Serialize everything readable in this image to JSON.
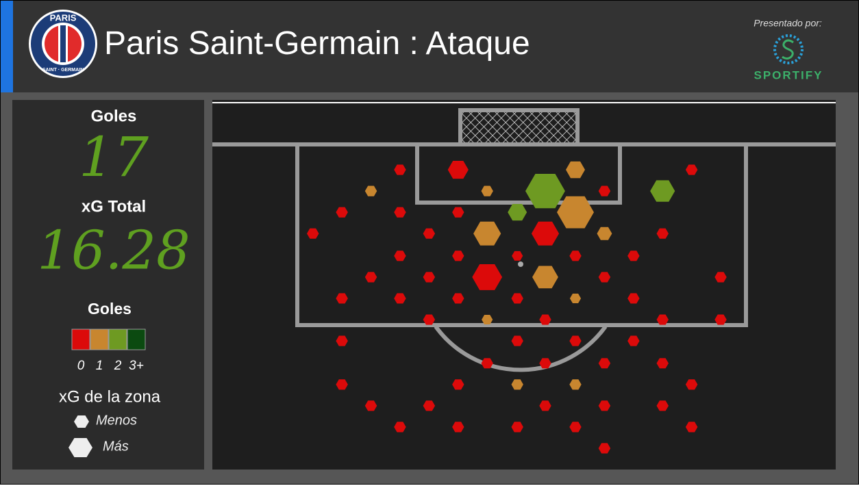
{
  "header": {
    "logo_top": "PARIS",
    "logo_bottom": "SAINT · GERMAIN",
    "title": "Paris Saint-Germain",
    "subtitle": ": Ataque",
    "sponsor_label": "Presentado por:",
    "sponsor": "SPORTIFY"
  },
  "stats": {
    "goals_label": "Goles",
    "goals": 17,
    "xg_label": "xG Total",
    "xg": 16.28
  },
  "legend": {
    "color_title": "Goles",
    "size_title": "xG de la zona",
    "size_small": "Menos",
    "size_large": "Más"
  },
  "chart_data": {
    "type": "hexbin",
    "xlim": [
      -27.6,
      28.2
    ],
    "ylim": [
      -3.7,
      29.1
    ],
    "color_scale": [
      {
        "label": "0",
        "color": "#dc0a0a"
      },
      {
        "label": "1",
        "color": "#c8862f"
      },
      {
        "label": "2",
        "color": "#6e9a22"
      },
      {
        "label": "3+",
        "color": "#0b4a10"
      }
    ],
    "hexes": [
      {
        "x": -10.8,
        "y": 2.3,
        "goals": 0,
        "xg": 0.07
      },
      {
        "x": -5.6,
        "y": 2.3,
        "goals": 0,
        "xg": 0.21
      },
      {
        "x": 4.9,
        "y": 2.3,
        "goals": 1,
        "xg": 0.18
      },
      {
        "x": 15.3,
        "y": 2.3,
        "goals": 0,
        "xg": 0.07
      },
      {
        "x": -13.4,
        "y": 4.2,
        "goals": 1,
        "xg": 0.07
      },
      {
        "x": -3.0,
        "y": 4.2,
        "goals": 1,
        "xg": 0.07
      },
      {
        "x": 2.2,
        "y": 4.2,
        "goals": 2,
        "xg": 0.77
      },
      {
        "x": 7.5,
        "y": 4.2,
        "goals": 0,
        "xg": 0.07
      },
      {
        "x": 12.7,
        "y": 4.2,
        "goals": 2,
        "xg": 0.3
      },
      {
        "x": -16.0,
        "y": 6.1,
        "goals": 0,
        "xg": 0.07
      },
      {
        "x": -10.8,
        "y": 6.1,
        "goals": 0,
        "xg": 0.07
      },
      {
        "x": -5.6,
        "y": 6.1,
        "goals": 0,
        "xg": 0.07
      },
      {
        "x": -0.3,
        "y": 6.1,
        "goals": 2,
        "xg": 0.18
      },
      {
        "x": 4.9,
        "y": 6.1,
        "goals": 1,
        "xg": 0.67
      },
      {
        "x": -18.6,
        "y": 8.0,
        "goals": 0,
        "xg": 0.07
      },
      {
        "x": -8.2,
        "y": 8.0,
        "goals": 0,
        "xg": 0.07
      },
      {
        "x": -3.0,
        "y": 8.0,
        "goals": 1,
        "xg": 0.37
      },
      {
        "x": 2.2,
        "y": 8.0,
        "goals": 0,
        "xg": 0.37
      },
      {
        "x": 7.5,
        "y": 8.0,
        "goals": 1,
        "xg": 0.11
      },
      {
        "x": 12.7,
        "y": 8.0,
        "goals": 0,
        "xg": 0.07
      },
      {
        "x": -10.8,
        "y": 10.0,
        "goals": 0,
        "xg": 0.07
      },
      {
        "x": -5.6,
        "y": 10.0,
        "goals": 0,
        "xg": 0.07
      },
      {
        "x": -0.3,
        "y": 10.0,
        "goals": 0,
        "xg": 0.06
      },
      {
        "x": 4.9,
        "y": 10.0,
        "goals": 0,
        "xg": 0.07
      },
      {
        "x": 10.1,
        "y": 10.0,
        "goals": 0,
        "xg": 0.07
      },
      {
        "x": -13.4,
        "y": 11.9,
        "goals": 0,
        "xg": 0.07
      },
      {
        "x": -8.2,
        "y": 11.9,
        "goals": 0,
        "xg": 0.07
      },
      {
        "x": -3.0,
        "y": 11.9,
        "goals": 0,
        "xg": 0.44
      },
      {
        "x": 2.2,
        "y": 11.9,
        "goals": 1,
        "xg": 0.33
      },
      {
        "x": 7.5,
        "y": 11.9,
        "goals": 0,
        "xg": 0.07
      },
      {
        "x": 17.9,
        "y": 11.9,
        "goals": 0,
        "xg": 0.07
      },
      {
        "x": -16.0,
        "y": 13.8,
        "goals": 0,
        "xg": 0.07
      },
      {
        "x": -10.8,
        "y": 13.8,
        "goals": 0,
        "xg": 0.07
      },
      {
        "x": -5.6,
        "y": 13.8,
        "goals": 0,
        "xg": 0.07
      },
      {
        "x": -0.3,
        "y": 13.8,
        "goals": 0,
        "xg": 0.07
      },
      {
        "x": 4.9,
        "y": 13.8,
        "goals": 1,
        "xg": 0.06
      },
      {
        "x": 10.1,
        "y": 13.8,
        "goals": 0,
        "xg": 0.07
      },
      {
        "x": -8.2,
        "y": 15.7,
        "goals": 0,
        "xg": 0.07
      },
      {
        "x": -3.0,
        "y": 15.7,
        "goals": 1,
        "xg": 0.06
      },
      {
        "x": 2.2,
        "y": 15.7,
        "goals": 0,
        "xg": 0.07
      },
      {
        "x": 12.7,
        "y": 15.7,
        "goals": 0,
        "xg": 0.07
      },
      {
        "x": 17.9,
        "y": 15.7,
        "goals": 0,
        "xg": 0.07
      },
      {
        "x": -16.0,
        "y": 17.6,
        "goals": 0,
        "xg": 0.07
      },
      {
        "x": -0.3,
        "y": 17.6,
        "goals": 0,
        "xg": 0.07
      },
      {
        "x": 4.9,
        "y": 17.6,
        "goals": 0,
        "xg": 0.07
      },
      {
        "x": 10.1,
        "y": 17.6,
        "goals": 0,
        "xg": 0.07
      },
      {
        "x": -3.0,
        "y": 19.6,
        "goals": 0,
        "xg": 0.07
      },
      {
        "x": 2.2,
        "y": 19.6,
        "goals": 0,
        "xg": 0.07
      },
      {
        "x": 7.5,
        "y": 19.6,
        "goals": 0,
        "xg": 0.07
      },
      {
        "x": 12.7,
        "y": 19.6,
        "goals": 0,
        "xg": 0.07
      },
      {
        "x": -16.0,
        "y": 21.5,
        "goals": 0,
        "xg": 0.07
      },
      {
        "x": -5.6,
        "y": 21.5,
        "goals": 0,
        "xg": 0.07
      },
      {
        "x": -0.3,
        "y": 21.5,
        "goals": 1,
        "xg": 0.07
      },
      {
        "x": 4.9,
        "y": 21.5,
        "goals": 1,
        "xg": 0.07
      },
      {
        "x": 15.3,
        "y": 21.5,
        "goals": 0,
        "xg": 0.07
      },
      {
        "x": -13.4,
        "y": 23.4,
        "goals": 0,
        "xg": 0.07
      },
      {
        "x": -8.2,
        "y": 23.4,
        "goals": 0,
        "xg": 0.07
      },
      {
        "x": 2.2,
        "y": 23.4,
        "goals": 0,
        "xg": 0.07
      },
      {
        "x": 7.5,
        "y": 23.4,
        "goals": 0,
        "xg": 0.07
      },
      {
        "x": 12.7,
        "y": 23.4,
        "goals": 0,
        "xg": 0.07
      },
      {
        "x": -10.8,
        "y": 25.3,
        "goals": 0,
        "xg": 0.07
      },
      {
        "x": -5.6,
        "y": 25.3,
        "goals": 0,
        "xg": 0.07
      },
      {
        "x": -0.3,
        "y": 25.3,
        "goals": 0,
        "xg": 0.07
      },
      {
        "x": 4.9,
        "y": 25.3,
        "goals": 0,
        "xg": 0.07
      },
      {
        "x": 15.3,
        "y": 25.3,
        "goals": 0,
        "xg": 0.07
      },
      {
        "x": 7.5,
        "y": 27.2,
        "goals": 0,
        "xg": 0.07
      }
    ]
  }
}
